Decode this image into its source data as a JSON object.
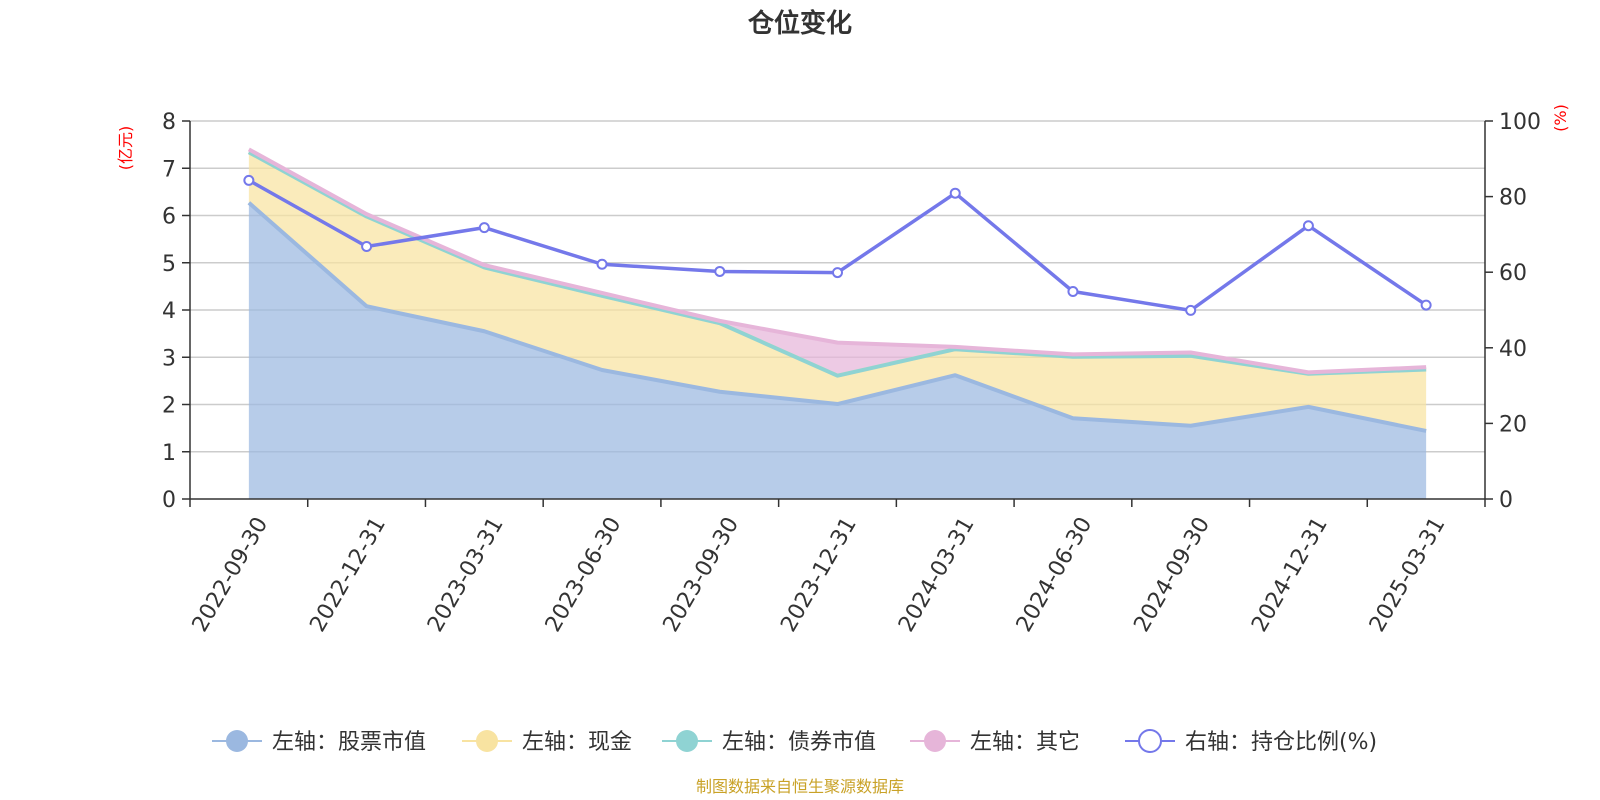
{
  "chart_data": {
    "type": "area",
    "title": "仓位变化",
    "categories": [
      "2022-09-30",
      "2022-12-31",
      "2023-03-31",
      "2023-06-30",
      "2023-09-30",
      "2023-12-31",
      "2024-03-31",
      "2024-06-30",
      "2024-09-30",
      "2024-12-31",
      "2025-03-31"
    ],
    "left_axis": {
      "unit": "(亿元)",
      "ylim": [
        0,
        8
      ],
      "ticks": [
        0,
        1,
        2,
        3,
        4,
        5,
        6,
        7,
        8
      ]
    },
    "right_axis": {
      "unit": "(%)",
      "ylim": [
        0,
        100
      ],
      "ticks": [
        0,
        20,
        40,
        60,
        80,
        100
      ]
    },
    "series": [
      {
        "name": "左轴：股票市值",
        "axis": "left",
        "kind": "stacked-area",
        "color": "#9bb8e0",
        "values": [
          6.27,
          4.08,
          3.55,
          2.73,
          2.27,
          2.01,
          2.62,
          1.71,
          1.55,
          1.95,
          1.44
        ]
      },
      {
        "name": "左轴：现金",
        "axis": "left",
        "kind": "stacked-area",
        "color": "#f8e3a1",
        "values": [
          1.07,
          1.9,
          1.35,
          1.57,
          1.45,
          0.6,
          0.55,
          1.3,
          1.48,
          0.7,
          1.3
        ]
      },
      {
        "name": "左轴：债券市值",
        "axis": "left",
        "kind": "stacked-area",
        "color": "#8fd3d3",
        "values": [
          0,
          0,
          0,
          0,
          0,
          0,
          0,
          0,
          0,
          0,
          0
        ]
      },
      {
        "name": "左轴：其它",
        "axis": "left",
        "kind": "stacked-area",
        "color": "#e6b5d9",
        "values": [
          0.06,
          0.05,
          0.05,
          0.06,
          0.05,
          0.7,
          0.05,
          0.05,
          0.07,
          0.03,
          0.05
        ]
      },
      {
        "name": "右轴：持仓比例(%)",
        "axis": "right",
        "kind": "line",
        "color": "#7478ea",
        "values": [
          84.3,
          66.8,
          71.8,
          62.1,
          60.2,
          59.9,
          80.9,
          54.9,
          49.9,
          72.3,
          51.3
        ]
      }
    ],
    "grid": true,
    "legend_position": "bottom",
    "source": "制图数据来自恒生聚源数据库"
  }
}
